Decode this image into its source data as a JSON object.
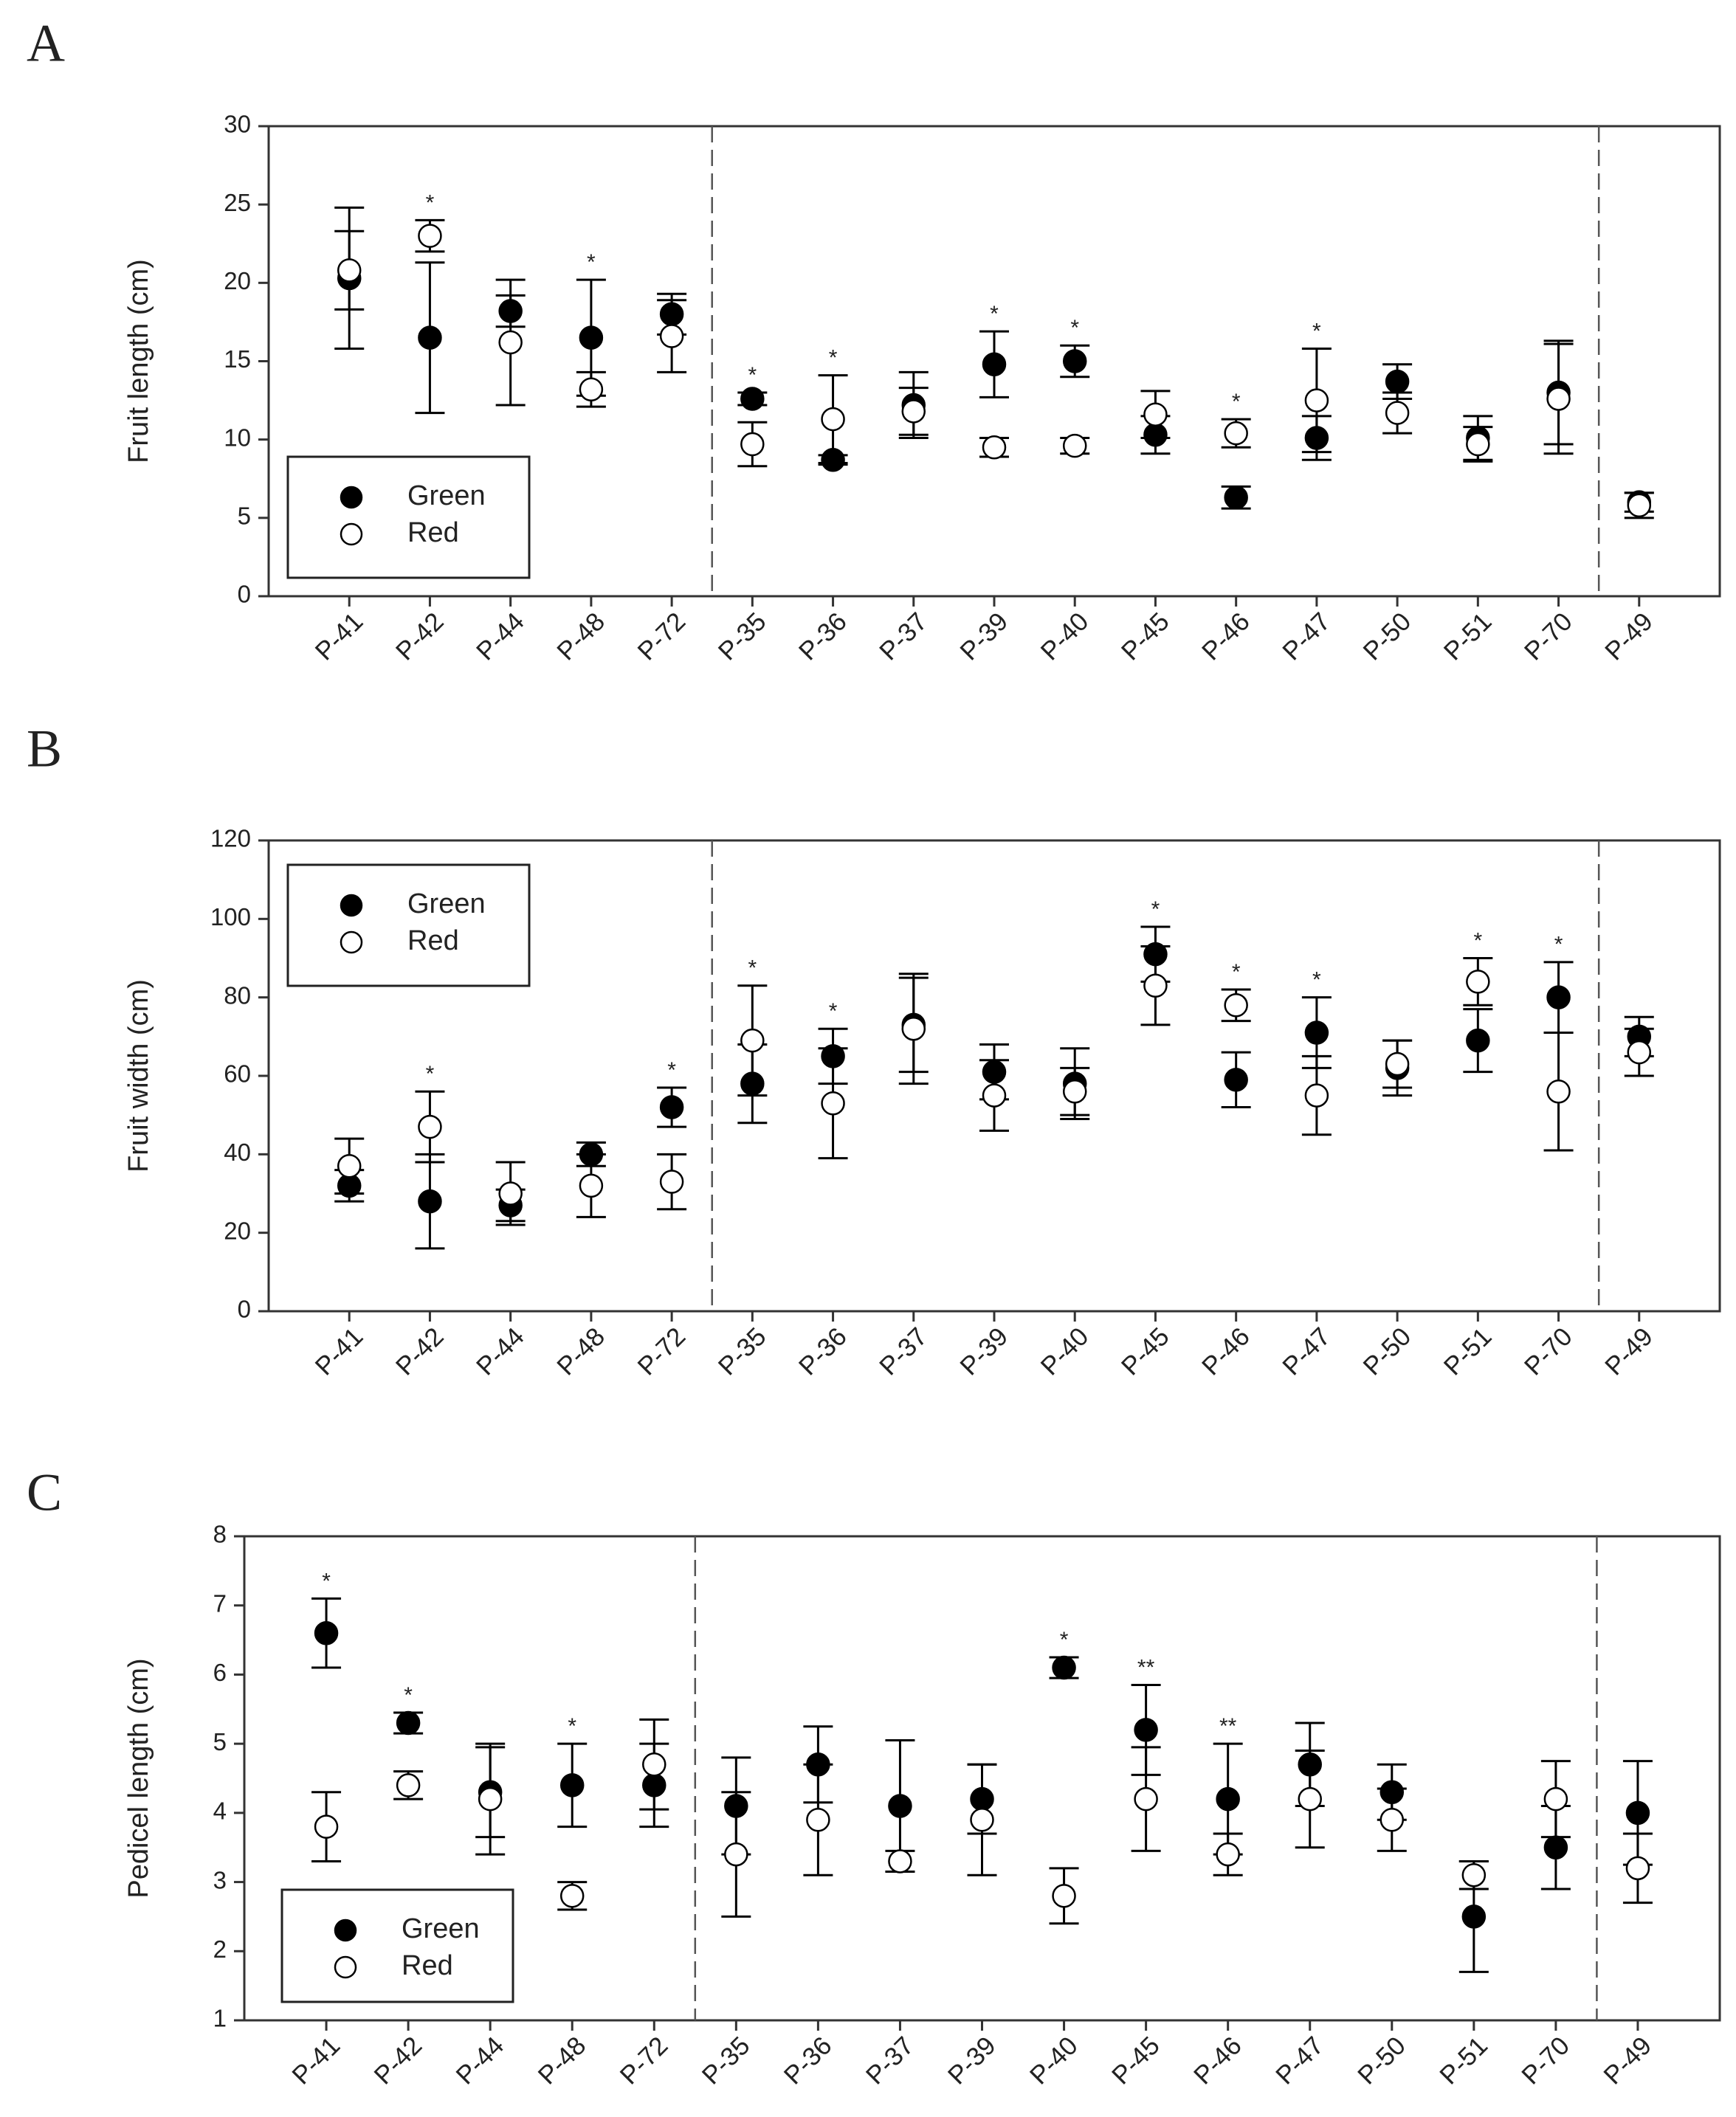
{
  "chart_data": [
    {
      "panel": "A",
      "type": "errorbar",
      "ylabel": "Fruit length (cm)",
      "categories": [
        "P-41",
        "P-42",
        "P-44",
        "P-48",
        "P-72",
        "P-35",
        "P-36",
        "P-37",
        "P-39",
        "P-40",
        "P-45",
        "P-46",
        "P-47",
        "P-50",
        "P-51",
        "P-70",
        "P-49"
      ],
      "series": [
        {
          "name": "Green",
          "color": "#000000",
          "fill": "#000000",
          "values": [
            20.3,
            16.5,
            18.2,
            16.5,
            18,
            12.6,
            8.7,
            12.2,
            14.8,
            15,
            10.3,
            6.3,
            10.1,
            13.7,
            10.1,
            13,
            6
          ],
          "errors": [
            4.5,
            4.8,
            1,
            3.7,
            1.3,
            0.4,
            0.3,
            2.1,
            2.1,
            1,
            1.2,
            0.7,
            1.4,
            1.1,
            1.4,
            3.3,
            0.6
          ]
        },
        {
          "name": "Red",
          "color": "#000000",
          "fill": "#ffffff",
          "values": [
            20.8,
            23,
            16.2,
            13.2,
            16.6,
            9.7,
            11.3,
            11.8,
            9.5,
            9.6,
            11.6,
            10.4,
            12.5,
            11.7,
            9.7,
            12.6,
            5.8
          ],
          "errors": [
            2.5,
            1,
            4,
            1.1,
            2.3,
            1.4,
            2.8,
            1.5,
            0.6,
            0.5,
            1.5,
            0.9,
            3.3,
            1.3,
            1.1,
            3.5,
            0.8
          ]
        }
      ],
      "significance": [
        null,
        "*",
        null,
        "*",
        null,
        "*",
        "*",
        null,
        "*",
        "*",
        null,
        "*",
        "*",
        null,
        null,
        null,
        null
      ],
      "ylim": [
        0,
        30
      ],
      "yticks": [
        0,
        5,
        10,
        15,
        20,
        25,
        30
      ],
      "legend": "lower left"
    },
    {
      "panel": "B",
      "type": "errorbar",
      "ylabel": "Fruit width (cm)",
      "categories": [
        "P-41",
        "P-42",
        "P-44",
        "P-48",
        "P-72",
        "P-35",
        "P-36",
        "P-37",
        "P-39",
        "P-40",
        "P-45",
        "P-46",
        "P-47",
        "P-50",
        "P-51",
        "P-70",
        "P-49"
      ],
      "series": [
        {
          "name": "Green",
          "color": "#000000",
          "fill": "#000000",
          "values": [
            32,
            28,
            27,
            40,
            52,
            58,
            65,
            73,
            61,
            58,
            91,
            59,
            71,
            62,
            69,
            80,
            70
          ],
          "errors": [
            4,
            12,
            4,
            3,
            5,
            10,
            7,
            12,
            7,
            9,
            7,
            7,
            9,
            7,
            8,
            9,
            5
          ]
        },
        {
          "name": "Red",
          "color": "#000000",
          "fill": "#ffffff",
          "values": [
            37,
            47,
            30,
            32,
            33,
            69,
            53,
            72,
            55,
            56,
            83,
            78,
            55,
            63,
            84,
            56,
            66
          ],
          "errors": [
            7,
            9,
            8,
            8,
            7,
            14,
            14,
            14,
            9,
            6,
            10,
            4,
            10,
            6,
            6,
            15,
            6
          ]
        }
      ],
      "significance": [
        null,
        "*",
        null,
        null,
        "*",
        "*",
        "*",
        null,
        null,
        null,
        "*",
        "*",
        "*",
        null,
        "*",
        "*",
        null
      ],
      "ylim": [
        0,
        120
      ],
      "yticks": [
        0,
        20,
        40,
        60,
        80,
        100,
        120
      ],
      "legend": "upper left"
    },
    {
      "panel": "C",
      "type": "errorbar",
      "ylabel": "Pedicel length (cm)",
      "categories": [
        "P-41",
        "P-42",
        "P-44",
        "P-48",
        "P-72",
        "P-35",
        "P-36",
        "P-37",
        "P-39",
        "P-40",
        "P-45",
        "P-46",
        "P-47",
        "P-50",
        "P-51",
        "P-70",
        "P-49"
      ],
      "series": [
        {
          "name": "Green",
          "color": "#000000",
          "fill": "#000000",
          "values": [
            6.6,
            5.3,
            4.3,
            4.4,
            4.4,
            4.1,
            4.7,
            4.1,
            4.2,
            6.1,
            5.2,
            4.2,
            4.7,
            4.3,
            2.5,
            3.5,
            4
          ],
          "errors": [
            0.5,
            0.15,
            0.65,
            0.6,
            0.6,
            0.7,
            0.55,
            0.95,
            0.5,
            0.15,
            0.65,
            0.8,
            0.6,
            0.4,
            0.8,
            0.6,
            0.75
          ]
        },
        {
          "name": "Red",
          "color": "#000000",
          "fill": "#ffffff",
          "values": [
            3.8,
            4.4,
            4.2,
            2.8,
            4.7,
            3.4,
            3.9,
            3.3,
            3.9,
            2.8,
            4.2,
            3.4,
            4.2,
            3.9,
            3.1,
            4.2,
            3.2
          ],
          "errors": [
            0.5,
            0.2,
            0.8,
            0.2,
            0.65,
            0.9,
            0.8,
            0.15,
            0.8,
            0.4,
            0.75,
            0.3,
            0.7,
            0.45,
            0.2,
            0.55,
            0.5
          ]
        }
      ],
      "significance": [
        "*",
        "*",
        null,
        "*",
        null,
        null,
        null,
        null,
        null,
        "*",
        "**",
        "**",
        null,
        null,
        null,
        null,
        null
      ],
      "ylim": [
        1,
        8
      ],
      "yticks": [
        1,
        2,
        3,
        4,
        5,
        6,
        7,
        8
      ],
      "legend": "lower left"
    }
  ]
}
